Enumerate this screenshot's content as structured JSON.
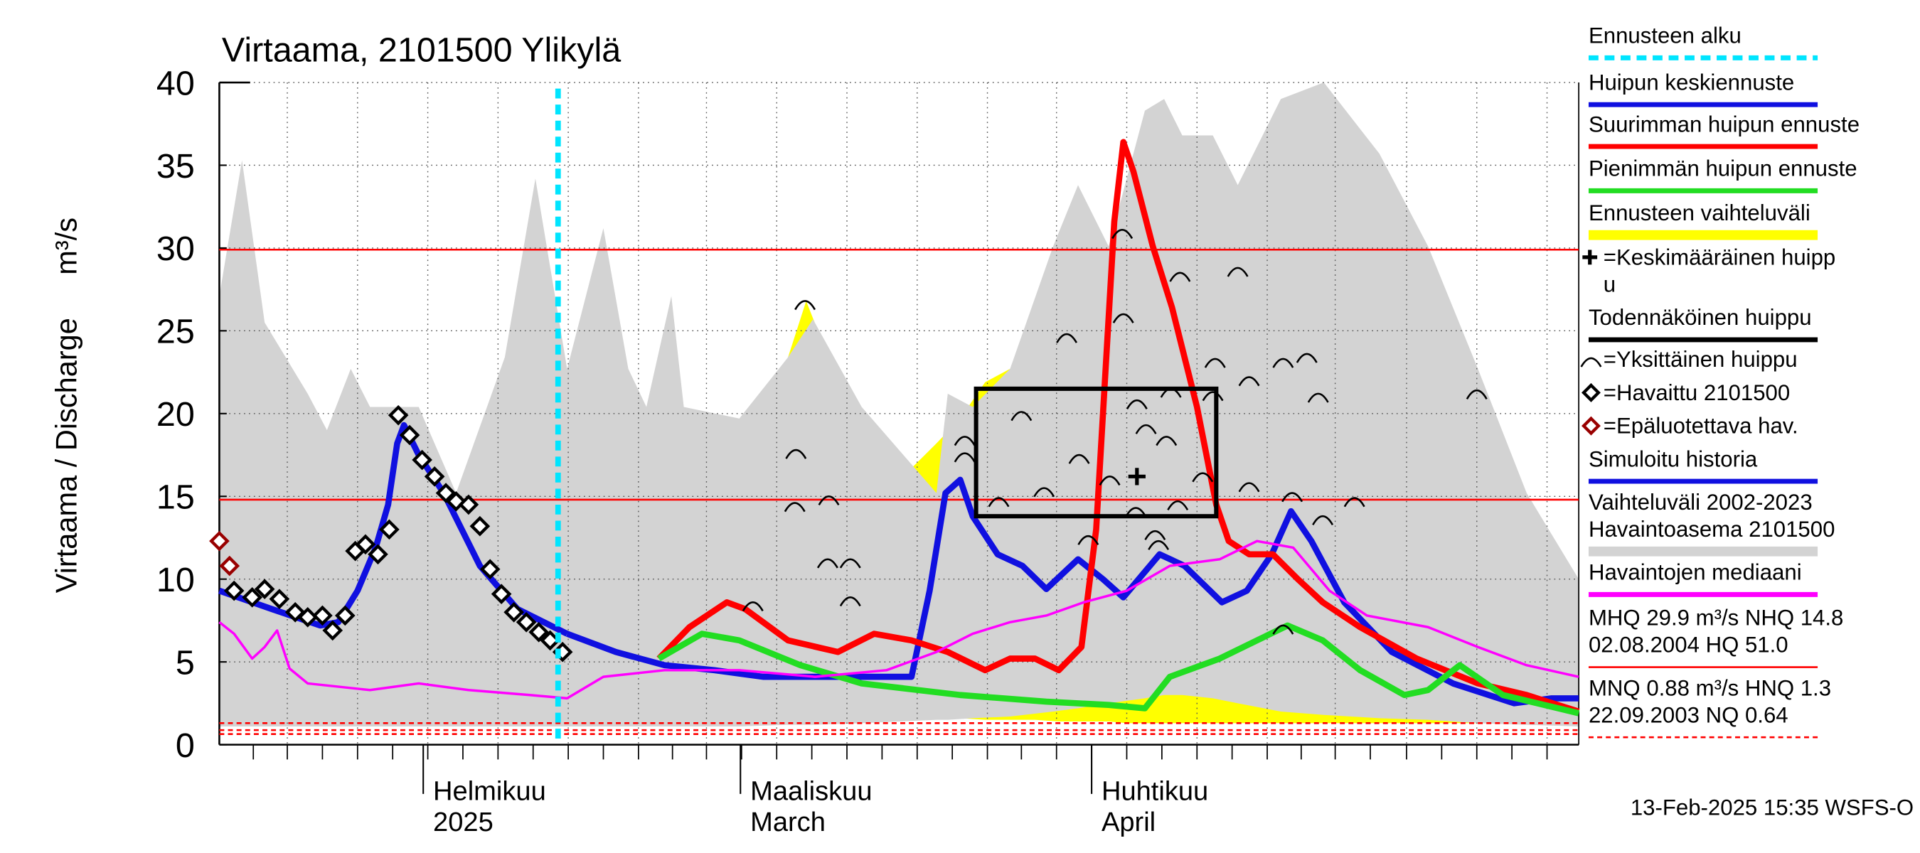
{
  "chart_data": {
    "type": "line",
    "title": "Virtaama, 2101500 Ylikylä",
    "ylabel": "Virtaama / Discharge",
    "yunit": "m³/s",
    "footer": "13-Feb-2025 15:35 WSFS-O",
    "xlim": [
      0,
      120
    ],
    "ylim": [
      0,
      40
    ],
    "yticks": [
      0,
      5,
      10,
      15,
      20,
      25,
      30,
      35,
      40
    ],
    "xticks": [
      {
        "value": 18,
        "label": [
          "Helmikuu",
          "2025"
        ]
      },
      {
        "value": 46,
        "label": [
          "Maaliskuu",
          "March"
        ]
      },
      {
        "value": 77,
        "label": [
          "Huhtikuu",
          "April"
        ]
      }
    ],
    "xgrid": [
      6.0,
      12.2,
      18.4,
      24.6,
      30.8,
      37.0,
      43.0,
      49.2,
      55.4,
      61.6,
      67.8,
      73.9,
      80.1,
      86.3,
      92.5,
      98.5,
      104.8,
      111.0,
      117.2
    ],
    "xminor": [
      3.0,
      6.0,
      9.1,
      12.2,
      15.3,
      18.4,
      21.5,
      24.6,
      27.7,
      30.8,
      33.9,
      37.0,
      40.0,
      43.0,
      46.1,
      49.2,
      52.3,
      55.4,
      58.5,
      61.6,
      64.7,
      67.8,
      70.8,
      73.9,
      77.0,
      80.1,
      83.2,
      86.3,
      89.4,
      92.5,
      95.5,
      98.5,
      101.6,
      104.8,
      107.9,
      111.0,
      114.1,
      117.2
    ],
    "grid": true,
    "series": [
      {
        "name": "Ennusteen alku",
        "kind": "vline",
        "color": "#00e5ff",
        "x": 29.9
      },
      {
        "name": "Huipun keskiennuste",
        "kind": "line",
        "color": "#1010e0",
        "x": [
          30.7,
          35.0,
          39.3,
          43.7,
          48.0,
          54.6,
          58.9,
          61.1,
          62.7,
          64.1,
          65.4,
          66.5,
          68.7,
          70.9,
          73.0,
          75.8,
          78.0,
          79.8,
          83.0,
          85.2,
          88.5,
          90.7,
          92.9,
          94.6,
          96.4,
          99.3,
          103.5,
          108.9,
          114.3,
          117.6,
          120
        ],
        "values": [
          6.7,
          5.6,
          4.8,
          4.5,
          4.1,
          4.1,
          4.1,
          4.1,
          9.3,
          15.2,
          16.0,
          13.8,
          11.5,
          10.8,
          9.4,
          11.2,
          10.0,
          8.9,
          11.5,
          10.8,
          8.6,
          9.3,
          11.5,
          14.1,
          12.3,
          8.6,
          5.6,
          3.7,
          2.5,
          2.8,
          2.8
        ]
      },
      {
        "name": "Suurimman huipun ennuste",
        "kind": "line",
        "color": "#ff0000",
        "x": [
          38.8,
          41.5,
          44.8,
          46.4,
          50.2,
          54.6,
          57.8,
          61.1,
          64.3,
          67.6,
          69.8,
          72.0,
          74.1,
          76.1,
          77.4,
          79.0,
          79.8,
          80.7,
          82.4,
          84.1,
          86.3,
          88.0,
          89.1,
          90.9,
          93.0,
          95.2,
          97.4,
          100.7,
          105.7,
          111.1,
          115.4,
          120
        ],
        "values": [
          5.2,
          7.1,
          8.6,
          8.2,
          6.3,
          5.6,
          6.7,
          6.3,
          5.6,
          4.5,
          5.2,
          5.2,
          4.5,
          5.9,
          13.0,
          31.6,
          36.4,
          34.6,
          30.1,
          26.4,
          20.4,
          14.5,
          12.3,
          11.5,
          11.5,
          10.0,
          8.6,
          7.1,
          5.2,
          3.7,
          3.0,
          2.0
        ]
      },
      {
        "name": "Pienimmän huipun ennuste",
        "kind": "line",
        "color": "#22dd22",
        "x": [
          38.8,
          42.6,
          45.9,
          51.3,
          56.7,
          65.4,
          73.0,
          78.5,
          81.7,
          83.9,
          88.3,
          91.6,
          94.3,
          97.4,
          100.7,
          104.6,
          106.7,
          109.5,
          113.3,
          120
        ],
        "values": [
          5.2,
          6.7,
          6.3,
          4.8,
          3.7,
          3.0,
          2.6,
          2.4,
          2.2,
          4.1,
          5.2,
          6.3,
          7.2,
          6.3,
          4.5,
          3.0,
          3.3,
          4.8,
          3.0,
          1.9
        ]
      },
      {
        "name": "Ennusteen vaihteluväli",
        "kind": "band",
        "color": "#ffff00",
        "x": [
          38.8,
          41.5,
          43.2,
          45.9,
          48.0,
          50.2,
          51.8,
          52.9,
          54.6,
          56.7,
          58.9,
          61.1,
          63.3,
          65.4,
          67.6,
          69.8,
          72.0,
          74.1,
          76.3,
          78.5,
          80.1,
          81.7,
          83.9,
          85.0,
          86.6,
          88.3,
          89.9,
          91.6,
          93.7,
          95.9,
          98.0,
          100.2,
          104.6,
          108.9,
          110.5,
          112.2,
          114.3,
          117.6,
          120
        ],
        "values": [
          5.2,
          13.8,
          19.3,
          19.3,
          20.4,
          23.4,
          26.8,
          24.9,
          21.9,
          19.0,
          16.7,
          16.7,
          18.2,
          19.7,
          21.9,
          22.7,
          23.4,
          24.9,
          25.7,
          27.1,
          33.8,
          33.1,
          31.6,
          28.6,
          25.7,
          24.9,
          28.6,
          24.9,
          24.2,
          21.9,
          19.0,
          16.0,
          15.2,
          13.8,
          21.2,
          18.2,
          10.8,
          3.3,
          2.2
        ],
        "lower": [
          5.2,
          3.5,
          2.8,
          2.4,
          2.2,
          2.0,
          1.9,
          1.9,
          1.8,
          1.8,
          1.7,
          1.7,
          1.6,
          1.6,
          1.5,
          1.5,
          1.5,
          1.4,
          1.4,
          1.4,
          1.3,
          1.3,
          1.3,
          1.3,
          1.3,
          1.3,
          1.3,
          1.3,
          1.3,
          1.3,
          1.3,
          1.3,
          1.3,
          1.3,
          1.3,
          1.3,
          1.3,
          1.3,
          1.3
        ]
      },
      {
        "name": [
          "=Keskimääräinen huipp",
          "u"
        ],
        "kind": "cross",
        "color": "#000000",
        "x": [
          81.0
        ],
        "values": [
          16.2
        ]
      },
      {
        "name": "Todennäköinen huippu",
        "kind": "box",
        "color": "#000000",
        "x": [
          66.8,
          88.0
        ],
        "values": [
          13.8,
          21.5
        ]
      },
      {
        "name": "=Yksittäinen huippu",
        "kind": "peaks",
        "color": "#000000",
        "x": [
          51.7,
          50.9,
          50.8,
          53.8,
          53.7,
          55.7,
          55.7,
          47.1,
          65.8,
          65.8,
          68.8,
          70.8,
          72.8,
          74.8,
          75.9,
          76.7,
          78.6,
          79.7,
          79.8,
          81.0,
          80.9,
          81.8,
          82.6,
          82.9,
          83.6,
          84.6,
          84.8,
          84.0,
          87.7,
          89.9,
          86.8,
          87.9,
          90.9,
          90.9,
          93.9,
          96.0,
          97.0,
          94.7,
          100.2,
          97.4,
          111.0,
          93.9
        ],
        "values": [
          26.8,
          17.8,
          14.6,
          15.0,
          11.2,
          11.2,
          8.9,
          8.6,
          18.6,
          17.6,
          14.9,
          20.1,
          15.5,
          24.8,
          17.5,
          12.6,
          16.2,
          31.1,
          26.0,
          20.8,
          14.3,
          19.3,
          12.9,
          12.3,
          18.6,
          14.7,
          28.5,
          21.5,
          21.3,
          28.8,
          16.4,
          23.3,
          22.2,
          15.8,
          23.3,
          23.6,
          21.2,
          15.2,
          14.9,
          13.8,
          21.4,
          7.2
        ]
      },
      {
        "name": "=Havaittu 2101500",
        "kind": "markers",
        "color": "#000000",
        "x": [
          1.3,
          2.9,
          4.0,
          5.3,
          6.7,
          7.8,
          9.1,
          10.0,
          11.1,
          12.0,
          12.9,
          14.0,
          15.0,
          15.8,
          16.8,
          17.9,
          19.0,
          20.0,
          20.9,
          22.0,
          23.0,
          23.9,
          24.9,
          26.0,
          27.1,
          28.2,
          29.2,
          30.3
        ],
        "values": [
          9.3,
          8.9,
          9.4,
          8.8,
          8.0,
          7.7,
          7.8,
          6.9,
          7.8,
          11.7,
          12.1,
          11.5,
          13.0,
          19.9,
          18.7,
          17.2,
          16.2,
          15.2,
          14.7,
          14.5,
          13.2,
          10.6,
          9.1,
          8.0,
          7.4,
          6.8,
          6.3,
          5.6
        ]
      },
      {
        "name": "=Epäluotettava hav.",
        "kind": "markers",
        "color": "#990000",
        "x": [
          0,
          0.9
        ],
        "values": [
          12.3,
          10.8
        ]
      },
      {
        "name": "Simuloitu historia",
        "kind": "line",
        "color": "#1010e0",
        "x": [
          0,
          4.6,
          8.9,
          10.5,
          12.2,
          13.8,
          14.9,
          15.7,
          16.3,
          17.6,
          19.8,
          23.0,
          26.3,
          30.7
        ],
        "values": [
          9.3,
          8.2,
          7.2,
          7.4,
          9.3,
          11.9,
          14.5,
          18.2,
          19.3,
          17.5,
          15.2,
          10.8,
          8.2,
          6.7
        ]
      },
      {
        "name": [
          "Vaihteluväli 2002-2023",
          " Havaintoasema 2101500"
        ],
        "kind": "band",
        "color": "#d3d3d3",
        "x": [
          0,
          2.0,
          4.0,
          7.8,
          9.5,
          11.6,
          13.3,
          17.6,
          20.9,
          25.2,
          27.9,
          30.7,
          33.9,
          36.1,
          37.7,
          39.9,
          41.0,
          45.9,
          50.2,
          52.4,
          56.7,
          63.3,
          64.3,
          66.5,
          69.8,
          73.6,
          75.8,
          78.5,
          81.7,
          83.4,
          85.0,
          87.7,
          89.9,
          93.7,
          97.5,
          102.4,
          106.7,
          111.1,
          115.4,
          120
        ],
        "values": [
          27.1,
          35.3,
          25.5,
          21.2,
          19.0,
          22.7,
          20.4,
          20.4,
          15.2,
          23.4,
          34.2,
          22.7,
          31.2,
          22.7,
          20.4,
          27.1,
          20.4,
          19.7,
          23.4,
          25.7,
          20.4,
          15.2,
          21.2,
          20.4,
          22.7,
          30.1,
          33.8,
          30.1,
          38.3,
          39.0,
          36.8,
          36.8,
          33.8,
          39.0,
          40.0,
          35.7,
          30.1,
          22.7,
          15.2,
          10.0
        ],
        "lower": [
          1.1,
          1.1,
          1.1,
          1.1,
          1.1,
          1.1,
          1.1,
          1.1,
          1.1,
          1.1,
          1.1,
          1.1,
          1.1,
          1.1,
          1.1,
          1.1,
          1.1,
          1.1,
          1.2,
          1.2,
          1.3,
          1.5,
          1.5,
          1.6,
          1.7,
          2.0,
          2.2,
          2.5,
          2.8,
          3.0,
          3.0,
          2.8,
          2.5,
          2.0,
          1.8,
          1.6,
          1.5,
          1.3,
          1.2,
          1.1
        ]
      },
      {
        "name": "Havaintojen mediaani",
        "kind": "line",
        "color": "#ff00ff",
        "x": [
          0,
          1.3,
          2.9,
          4.0,
          5.1,
          6.2,
          7.8,
          13.3,
          17.6,
          22.0,
          27.4,
          30.7,
          33.9,
          39.3,
          45.9,
          52.6,
          58.9,
          63.3,
          66.5,
          69.8,
          73.0,
          76.3,
          80.1,
          83.9,
          88.3,
          91.6,
          94.8,
          98.0,
          101.3,
          106.7,
          111.1,
          115.4,
          120
        ],
        "values": [
          7.4,
          6.7,
          5.2,
          5.9,
          6.9,
          4.6,
          3.7,
          3.3,
          3.7,
          3.3,
          3.0,
          2.8,
          4.1,
          4.5,
          4.5,
          4.1,
          4.5,
          5.6,
          6.7,
          7.4,
          7.8,
          8.6,
          9.3,
          10.8,
          11.2,
          12.3,
          11.9,
          9.3,
          7.8,
          7.1,
          5.9,
          4.8,
          4.1
        ]
      },
      {
        "name": [
          "MHQ 29.9 m³/s NHQ 14.8",
          "02.08.2004 HQ 51.0"
        ],
        "kind": "hlines",
        "color": "#ff0000",
        "dashed": false,
        "values": [
          29.9,
          14.8
        ]
      },
      {
        "name": [
          "MNQ 0.88 m³/s HNQ  1.3",
          "22.09.2003 NQ 0.64"
        ],
        "kind": "hlines",
        "color": "#ff0000",
        "dashed": true,
        "values": [
          1.3,
          0.88,
          0.64
        ]
      }
    ]
  }
}
